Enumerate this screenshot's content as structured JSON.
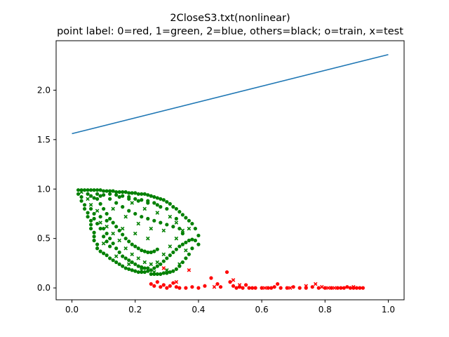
{
  "chart_data": {
    "type": "scatter",
    "title": "2CloseS3.txt(nonlinear)",
    "subtitle": "point label: 0=red, 1=green, 2=blue, others=black; o=train, x=test",
    "xlim": [
      -0.05,
      1.05
    ],
    "ylim": [
      -0.12,
      2.5
    ],
    "xticks": [
      0.0,
      0.2,
      0.4,
      0.6,
      0.8,
      1.0
    ],
    "xtick_labels": [
      "0.0",
      "0.2",
      "0.4",
      "0.6",
      "0.8",
      "1.0"
    ],
    "yticks": [
      0.0,
      0.5,
      1.0,
      1.5,
      2.0
    ],
    "ytick_labels": [
      "0.0",
      "0.5",
      "1.0",
      "1.5",
      "2.0"
    ],
    "grid": false,
    "line": {
      "color": "#1f77b4",
      "x": [
        0.0,
        1.0
      ],
      "y": [
        1.56,
        2.36
      ]
    },
    "colors": {
      "red": "#ff0000",
      "green": "#008000"
    },
    "series": [
      {
        "color": "green",
        "marker": "o",
        "points": [
          [
            0.02,
            0.99
          ],
          [
            0.03,
            0.99
          ],
          [
            0.04,
            0.99
          ],
          [
            0.05,
            0.99
          ],
          [
            0.06,
            0.99
          ],
          [
            0.07,
            0.99
          ],
          [
            0.08,
            0.99
          ],
          [
            0.09,
            0.99
          ],
          [
            0.1,
            0.98
          ],
          [
            0.11,
            0.98
          ],
          [
            0.12,
            0.98
          ],
          [
            0.13,
            0.98
          ],
          [
            0.14,
            0.97
          ],
          [
            0.15,
            0.97
          ],
          [
            0.16,
            0.97
          ],
          [
            0.17,
            0.97
          ],
          [
            0.18,
            0.96
          ],
          [
            0.19,
            0.96
          ],
          [
            0.2,
            0.96
          ],
          [
            0.21,
            0.95
          ],
          [
            0.22,
            0.95
          ],
          [
            0.23,
            0.95
          ],
          [
            0.24,
            0.94
          ],
          [
            0.25,
            0.93
          ],
          [
            0.26,
            0.92
          ],
          [
            0.27,
            0.91
          ],
          [
            0.28,
            0.9
          ],
          [
            0.29,
            0.89
          ],
          [
            0.3,
            0.87
          ],
          [
            0.31,
            0.85
          ],
          [
            0.32,
            0.82
          ],
          [
            0.33,
            0.8
          ],
          [
            0.34,
            0.77
          ],
          [
            0.35,
            0.74
          ],
          [
            0.36,
            0.71
          ],
          [
            0.37,
            0.68
          ],
          [
            0.38,
            0.65
          ],
          [
            0.39,
            0.6
          ],
          [
            0.4,
            0.53
          ],
          [
            0.4,
            0.44
          ],
          [
            0.02,
            0.95
          ],
          [
            0.03,
            0.92
          ],
          [
            0.03,
            0.88
          ],
          [
            0.04,
            0.84
          ],
          [
            0.04,
            0.8
          ],
          [
            0.05,
            0.76
          ],
          [
            0.05,
            0.72
          ],
          [
            0.06,
            0.68
          ],
          [
            0.06,
            0.64
          ],
          [
            0.06,
            0.6
          ],
          [
            0.07,
            0.56
          ],
          [
            0.07,
            0.52
          ],
          [
            0.07,
            0.48
          ],
          [
            0.08,
            0.44
          ],
          [
            0.08,
            0.4
          ],
          [
            0.09,
            0.37
          ],
          [
            0.1,
            0.35
          ],
          [
            0.11,
            0.33
          ],
          [
            0.12,
            0.3
          ],
          [
            0.13,
            0.28
          ],
          [
            0.14,
            0.26
          ],
          [
            0.15,
            0.24
          ],
          [
            0.16,
            0.22
          ],
          [
            0.17,
            0.2
          ],
          [
            0.18,
            0.19
          ],
          [
            0.19,
            0.18
          ],
          [
            0.2,
            0.17
          ],
          [
            0.21,
            0.16
          ],
          [
            0.22,
            0.16
          ],
          [
            0.23,
            0.16
          ],
          [
            0.24,
            0.17
          ],
          [
            0.25,
            0.18
          ],
          [
            0.26,
            0.2
          ],
          [
            0.27,
            0.22
          ],
          [
            0.28,
            0.24
          ],
          [
            0.29,
            0.27
          ],
          [
            0.3,
            0.3
          ],
          [
            0.31,
            0.33
          ],
          [
            0.32,
            0.36
          ],
          [
            0.33,
            0.39
          ],
          [
            0.34,
            0.42
          ],
          [
            0.35,
            0.44
          ],
          [
            0.36,
            0.46
          ],
          [
            0.37,
            0.48
          ],
          [
            0.38,
            0.49
          ],
          [
            0.39,
            0.48
          ],
          [
            0.38,
            0.4
          ],
          [
            0.37,
            0.34
          ],
          [
            0.36,
            0.3
          ],
          [
            0.35,
            0.26
          ],
          [
            0.34,
            0.22
          ],
          [
            0.33,
            0.19
          ],
          [
            0.32,
            0.17
          ],
          [
            0.31,
            0.16
          ],
          [
            0.3,
            0.15
          ],
          [
            0.29,
            0.15
          ],
          [
            0.28,
            0.14
          ],
          [
            0.27,
            0.14
          ],
          [
            0.26,
            0.14
          ],
          [
            0.25,
            0.14
          ],
          [
            0.08,
            0.9
          ],
          [
            0.09,
            0.85
          ],
          [
            0.1,
            0.8
          ],
          [
            0.11,
            0.75
          ],
          [
            0.12,
            0.7
          ],
          [
            0.13,
            0.66
          ],
          [
            0.14,
            0.62
          ],
          [
            0.15,
            0.58
          ],
          [
            0.16,
            0.54
          ],
          [
            0.17,
            0.5
          ],
          [
            0.18,
            0.47
          ],
          [
            0.19,
            0.44
          ],
          [
            0.2,
            0.42
          ],
          [
            0.21,
            0.4
          ],
          [
            0.22,
            0.38
          ],
          [
            0.23,
            0.37
          ],
          [
            0.24,
            0.36
          ],
          [
            0.25,
            0.36
          ],
          [
            0.26,
            0.37
          ],
          [
            0.27,
            0.39
          ],
          [
            0.12,
            0.9
          ],
          [
            0.14,
            0.86
          ],
          [
            0.16,
            0.82
          ],
          [
            0.18,
            0.78
          ],
          [
            0.2,
            0.75
          ],
          [
            0.22,
            0.72
          ],
          [
            0.24,
            0.7
          ],
          [
            0.26,
            0.68
          ],
          [
            0.28,
            0.66
          ],
          [
            0.3,
            0.64
          ],
          [
            0.32,
            0.62
          ],
          [
            0.34,
            0.6
          ],
          [
            0.15,
            0.92
          ],
          [
            0.18,
            0.9
          ],
          [
            0.21,
            0.88
          ],
          [
            0.24,
            0.86
          ],
          [
            0.27,
            0.84
          ],
          [
            0.3,
            0.8
          ],
          [
            0.33,
            0.7
          ],
          [
            0.35,
            0.55
          ],
          [
            0.05,
            0.95
          ],
          [
            0.06,
            0.93
          ],
          [
            0.07,
            0.91
          ],
          [
            0.08,
            0.95
          ],
          [
            0.09,
            0.93
          ],
          [
            0.1,
            0.94
          ],
          [
            0.12,
            0.95
          ],
          [
            0.14,
            0.94
          ],
          [
            0.16,
            0.93
          ],
          [
            0.18,
            0.92
          ],
          [
            0.2,
            0.9
          ],
          [
            0.22,
            0.89
          ],
          [
            0.24,
            0.88
          ],
          [
            0.26,
            0.86
          ],
          [
            0.28,
            0.82
          ],
          [
            0.1,
            0.6
          ],
          [
            0.11,
            0.55
          ],
          [
            0.12,
            0.5
          ],
          [
            0.13,
            0.45
          ],
          [
            0.14,
            0.4
          ],
          [
            0.15,
            0.36
          ],
          [
            0.16,
            0.32
          ],
          [
            0.17,
            0.3
          ],
          [
            0.18,
            0.28
          ],
          [
            0.19,
            0.26
          ],
          [
            0.2,
            0.24
          ],
          [
            0.21,
            0.22
          ],
          [
            0.22,
            0.21
          ],
          [
            0.23,
            0.2
          ],
          [
            0.24,
            0.2
          ],
          [
            0.07,
            0.7
          ],
          [
            0.08,
            0.65
          ],
          [
            0.09,
            0.6
          ],
          [
            0.1,
            0.52
          ],
          [
            0.11,
            0.47
          ],
          [
            0.12,
            0.42
          ],
          [
            0.06,
            0.8
          ],
          [
            0.07,
            0.75
          ],
          [
            0.09,
            0.72
          ],
          [
            0.11,
            0.68
          ]
        ]
      },
      {
        "color": "green",
        "marker": "x",
        "points": [
          [
            0.03,
            0.97
          ],
          [
            0.05,
            0.9
          ],
          [
            0.06,
            0.84
          ],
          [
            0.08,
            0.78
          ],
          [
            0.09,
            0.66
          ],
          [
            0.11,
            0.62
          ],
          [
            0.13,
            0.55
          ],
          [
            0.15,
            0.48
          ],
          [
            0.17,
            0.4
          ],
          [
            0.19,
            0.34
          ],
          [
            0.21,
            0.3
          ],
          [
            0.23,
            0.26
          ],
          [
            0.25,
            0.24
          ],
          [
            0.27,
            0.26
          ],
          [
            0.29,
            0.34
          ],
          [
            0.31,
            0.42
          ],
          [
            0.33,
            0.5
          ],
          [
            0.35,
            0.58
          ],
          [
            0.37,
            0.6
          ],
          [
            0.13,
            0.8
          ],
          [
            0.17,
            0.72
          ],
          [
            0.21,
            0.65
          ],
          [
            0.25,
            0.6
          ],
          [
            0.29,
            0.58
          ],
          [
            0.33,
            0.66
          ],
          [
            0.19,
            0.86
          ],
          [
            0.23,
            0.8
          ],
          [
            0.27,
            0.76
          ],
          [
            0.31,
            0.72
          ],
          [
            0.1,
            0.45
          ],
          [
            0.14,
            0.32
          ],
          [
            0.18,
            0.24
          ],
          [
            0.22,
            0.18
          ],
          [
            0.26,
            0.16
          ],
          [
            0.3,
            0.18
          ],
          [
            0.34,
            0.24
          ],
          [
            0.36,
            0.38
          ],
          [
            0.16,
            0.6
          ],
          [
            0.2,
            0.55
          ],
          [
            0.24,
            0.5
          ]
        ]
      },
      {
        "color": "red",
        "marker": "o",
        "points": [
          [
            0.25,
            0.04
          ],
          [
            0.26,
            0.02
          ],
          [
            0.27,
            0.06
          ],
          [
            0.28,
            0.01
          ],
          [
            0.29,
            0.03
          ],
          [
            0.3,
            0.0
          ],
          [
            0.31,
            0.02
          ],
          [
            0.32,
            0.05
          ],
          [
            0.33,
            0.01
          ],
          [
            0.34,
            0.0
          ],
          [
            0.36,
            0.0
          ],
          [
            0.38,
            0.01
          ],
          [
            0.4,
            0.0
          ],
          [
            0.42,
            0.02
          ],
          [
            0.44,
            0.1
          ],
          [
            0.46,
            0.04
          ],
          [
            0.47,
            0.01
          ],
          [
            0.49,
            0.16
          ],
          [
            0.5,
            0.06
          ],
          [
            0.51,
            0.02
          ],
          [
            0.52,
            0.0
          ],
          [
            0.53,
            0.01
          ],
          [
            0.54,
            0.0
          ],
          [
            0.55,
            0.03
          ],
          [
            0.56,
            0.0
          ],
          [
            0.58,
            0.0
          ],
          [
            0.6,
            0.0
          ],
          [
            0.62,
            0.0
          ],
          [
            0.64,
            0.01
          ],
          [
            0.65,
            0.04
          ],
          [
            0.66,
            0.0
          ],
          [
            0.68,
            0.0
          ],
          [
            0.7,
            0.01
          ],
          [
            0.72,
            0.0
          ],
          [
            0.74,
            0.0
          ],
          [
            0.76,
            0.01
          ],
          [
            0.78,
            0.0
          ],
          [
            0.8,
            0.0
          ],
          [
            0.82,
            0.0
          ],
          [
            0.84,
            0.0
          ],
          [
            0.85,
            0.0
          ],
          [
            0.86,
            0.0
          ],
          [
            0.87,
            0.01
          ],
          [
            0.88,
            0.0
          ],
          [
            0.89,
            0.0
          ],
          [
            0.9,
            0.0
          ],
          [
            0.91,
            0.0
          ],
          [
            0.92,
            0.0
          ],
          [
            0.57,
            0.0
          ],
          [
            0.63,
            0.0
          ]
        ]
      },
      {
        "color": "red",
        "marker": "x",
        "points": [
          [
            0.29,
            0.2
          ],
          [
            0.33,
            0.06
          ],
          [
            0.37,
            0.18
          ],
          [
            0.45,
            0.01
          ],
          [
            0.51,
            0.08
          ],
          [
            0.53,
            0.03
          ],
          [
            0.61,
            0.0
          ],
          [
            0.69,
            0.0
          ],
          [
            0.74,
            0.02
          ],
          [
            0.77,
            0.04
          ],
          [
            0.79,
            0.01
          ],
          [
            0.81,
            0.0
          ],
          [
            0.83,
            0.0
          ],
          [
            0.89,
            0.01
          ]
        ]
      }
    ]
  }
}
